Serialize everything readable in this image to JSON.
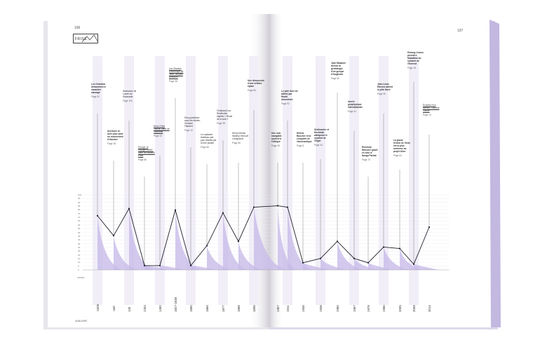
{
  "header": {
    "left_page_number": "196",
    "right_page_number": "197",
    "section_title": "FRISE"
  },
  "footer": {
    "label": "ANNUAIRE"
  },
  "colors": {
    "accent": "#b9addb",
    "area": "#c8bce8",
    "band": "#f1eef8",
    "line": "#1f1f2b",
    "spine": "#ddd8ee"
  },
  "timeline": {
    "y_ticks": [
      "100",
      "95",
      "90",
      "85",
      "80",
      "75",
      "70",
      "65",
      "60",
      "55",
      "50",
      "45",
      "40",
      "35",
      "30",
      "25",
      "20",
      "15",
      "10",
      "5",
      "0"
    ],
    "axis_caption": "ANNÉE",
    "events": [
      {
        "text": "Les Orokaiva démontrent le caractère sauvage",
        "page": "Page 52",
        "style": "em"
      },
      {
        "text": "Aventure en Asie pour pour un mouvement d'étendue",
        "page": "Page 28",
        "style": "em"
      },
      {
        "text": "Naissance de Lucien de Samosate",
        "page": "Page 100",
        "style": ""
      },
      {
        "text": "Europe, le voyage ouvert : carte de Mathieu Paris",
        "page": "Page 86",
        "style": "ul"
      },
      {
        "text": "Nova Orbis Tabula, carte de l'Arménie",
        "page": "Page 22",
        "style": "ul"
      },
      {
        "text": "Les Oiseaux d'Amérique de Jean-Jacques Audubon",
        "page": "Page 38",
        "style": "ul"
      },
      {
        "text": "Des pyramides sous les étoiles, Gustave Flaubert",
        "page": "Page 12",
        "style": ""
      },
      {
        "text": "Le capitaine Hatteras part pour Atlanta par la mer polaire",
        "page": "Page 56",
        "style": ""
      },
      {
        "text": "Ferdinand von Richthofen baptise « Route de la soie »",
        "page": "Page 98",
        "style": ""
      },
      {
        "text": "Henry Morton Stanley retrouve Livingstone",
        "page": "Page 66",
        "style": ""
      },
      {
        "text": "Une découverte d'une célèbre épave",
        "page": "Page 80",
        "style": "em"
      },
      {
        "text": "Une voie navigable ouverte à l'Afrique",
        "page": "Page 16",
        "style": "em"
      },
      {
        "text": "Le pôle Sud est atteint par Roald Amundsen",
        "page": "Page 92",
        "style": "em"
      },
      {
        "text": "Hélène Boucher et la conquête de l'aéronautique",
        "page": "Page 8",
        "style": "em"
      },
      {
        "text": "Sédimenter et Heckmair atteignent le sommet de l'Eiger",
        "page": "Page 44",
        "style": "em"
      },
      {
        "text": "Jean Malaurie dresse la généalogie d'un groupe d'Inughuits",
        "page": "Page 60",
        "style": "em"
      },
      {
        "text": "Année géophysique internationale",
        "page": "Page 42",
        "style": "em"
      },
      {
        "text": "Reinhold Messner gravit en solo le Nanga Parbat",
        "page": "Page 74",
        "style": "em"
      },
      {
        "text": "Jean-Louis Étienne atteint le pôle Nord",
        "page": "Page 30",
        "style": "em"
      },
      {
        "text": "La grand femme de l'Inde est la plus ancienne au projet Alice",
        "page": "Page 64",
        "style": "em"
      },
      {
        "text": "Pasang Lhamu première Népalaise au sommet de l'Everest",
        "page": "Page 18",
        "style": "em"
      },
      {
        "text": "Écoutes mon silence : Laurent Gaudé",
        "page": "Page 14",
        "style": "ul"
      }
    ],
    "years": [
      "-1000",
      "-440",
      "120",
      "1253",
      "1492",
      "1827-1838",
      "1850",
      "1866",
      "1877",
      "1888",
      "1896",
      "1907",
      "1911",
      "1935",
      "1938",
      "1950",
      "1957",
      "1978",
      "1986",
      "2005",
      "2008",
      "2014"
    ],
    "values": [
      38,
      24,
      43,
      3,
      3,
      42,
      3,
      17,
      40,
      20,
      44,
      45,
      44,
      5,
      8,
      20,
      8,
      5,
      16,
      15,
      4,
      30
    ]
  }
}
